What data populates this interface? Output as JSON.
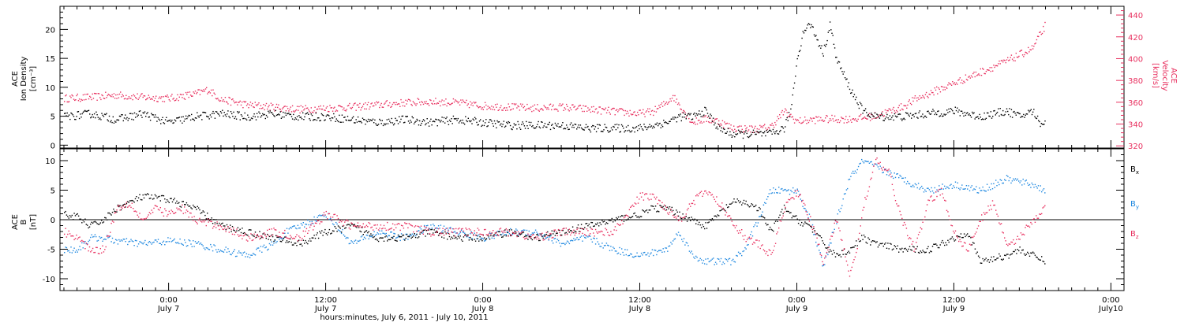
{
  "colors": {
    "black": "#000000",
    "pink": "#e8305f",
    "blue": "#1f88e0",
    "axis": "#000000"
  },
  "figure": {
    "xlabel": "hours:minutes, July  6, 2011 - July 10, 2011",
    "xticks": [
      {
        "time": "0:00",
        "date": "July 7",
        "hours": 24
      },
      {
        "time": "12:00",
        "date": "July 7",
        "hours": 36
      },
      {
        "time": "0:00",
        "date": "July 8",
        "hours": 48
      },
      {
        "time": "12:00",
        "date": "July 8",
        "hours": 60
      },
      {
        "time": "0:00",
        "date": "July 9",
        "hours": 72
      },
      {
        "time": "12:00",
        "date": "July 9",
        "hours": 84
      },
      {
        "time": "0:00",
        "date": "July10",
        "hours": 96
      }
    ]
  },
  "chart_data": [
    {
      "type": "scatter",
      "panel": "top",
      "ylabel": [
        "ACE",
        "Ion Density",
        "[cm⁻³]"
      ],
      "ylabel_right": [
        "ACE",
        "Velocity",
        "[km/s]"
      ],
      "x_units": "hours since July 6, 2011 00:00",
      "xlim": [
        15.7,
        97.0
      ],
      "ylim": [
        -0.5,
        24
      ],
      "yticks": [
        0,
        5,
        10,
        15,
        20
      ],
      "ylim_right": [
        318,
        448
      ],
      "yticks_right": [
        320,
        340,
        360,
        380,
        400,
        420,
        440
      ],
      "series": [
        {
          "axis": "left",
          "color": "black",
          "x": [
            16,
            18,
            20,
            22,
            24,
            26,
            28,
            30,
            32,
            34,
            36,
            38,
            40,
            42,
            44,
            46,
            48,
            50,
            52,
            54,
            56,
            58,
            60,
            61,
            62,
            62.5,
            63,
            64,
            65,
            66,
            67,
            68,
            69,
            70,
            71,
            71.5,
            72,
            72.5,
            73,
            74,
            74.5,
            75,
            76,
            77,
            78,
            80,
            82,
            84,
            86,
            88,
            89,
            90,
            90.5,
            91
          ],
          "y": [
            5,
            5.5,
            4.5,
            5.5,
            4,
            5,
            5.5,
            5,
            5.5,
            5,
            5,
            4.5,
            4,
            4.5,
            4,
            4.5,
            4,
            3.5,
            3.5,
            3.5,
            3,
            3,
            3,
            3.5,
            4,
            4.5,
            5,
            5,
            6,
            3,
            2,
            2,
            2,
            2,
            3,
            6,
            15,
            20,
            21,
            16,
            21,
            15,
            10,
            6,
            5,
            5,
            5.5,
            6,
            5,
            6,
            5,
            6,
            4,
            4
          ]
        },
        {
          "axis": "right",
          "color": "pink",
          "x": [
            16,
            18,
            20,
            22,
            24,
            26,
            27,
            28,
            30,
            32,
            34,
            36,
            38,
            40,
            42,
            44,
            46,
            48,
            50,
            52,
            54,
            56,
            58,
            60,
            61,
            62,
            62.5,
            63,
            64,
            65,
            66,
            67,
            68,
            69,
            70,
            71,
            72,
            73,
            74,
            75,
            76,
            77,
            78,
            80,
            81,
            82,
            84,
            86,
            88,
            90,
            91
          ],
          "y": [
            364,
            365,
            367,
            365,
            364,
            368,
            372,
            363,
            358,
            356,
            354,
            355,
            356,
            358,
            360,
            361,
            360,
            357,
            356,
            355,
            356,
            354,
            352,
            350,
            352,
            360,
            366,
            358,
            342,
            345,
            343,
            337,
            336,
            336,
            338,
            352,
            343,
            344,
            345,
            345,
            345,
            346,
            348,
            356,
            363,
            368,
            378,
            388,
            398,
            410,
            432
          ]
        },
        {
          "name": "",
          "axis": "left",
          "color": "pink",
          "x": [],
          "y": []
        }
      ]
    },
    {
      "type": "scatter",
      "panel": "bottom",
      "ylabel": [
        "ACE",
        "B",
        "[nT]"
      ],
      "x_units": "hours since July 6, 2011 00:00",
      "xlim": [
        15.7,
        97.0
      ],
      "ylim": [
        -12,
        12
      ],
      "yticks": [
        -10,
        -5,
        0,
        5,
        10
      ],
      "zero_line": true,
      "legend_placement": "right",
      "series": [
        {
          "name": "Bx",
          "label": "B",
          "sub": "x",
          "color": "black",
          "x": [
            16,
            17,
            18,
            19,
            20,
            22,
            24,
            26,
            28,
            30,
            32,
            34,
            36,
            38,
            40,
            42,
            44,
            46,
            48,
            50,
            52,
            54,
            56,
            58,
            60,
            61,
            62,
            63,
            64,
            65,
            66,
            67,
            68,
            69,
            70,
            71,
            72,
            73,
            74,
            75,
            76,
            77,
            78,
            80,
            82,
            84,
            85,
            86,
            88,
            89,
            90,
            91
          ],
          "y": [
            1,
            0.5,
            -1,
            0,
            2,
            4,
            3.5,
            2,
            -1,
            -2,
            -3,
            -4,
            -2,
            -1,
            -3,
            -3,
            -2,
            -3,
            -3,
            -2,
            -3,
            -2,
            -1,
            0,
            1,
            2,
            2,
            1,
            0,
            -1,
            1,
            3,
            3,
            2,
            -2,
            2,
            0,
            -1,
            -4,
            -6,
            -5,
            -3,
            -4,
            -5,
            -5,
            -3,
            -2,
            -7,
            -6,
            -5,
            -6,
            -7
          ]
        },
        {
          "name": "By",
          "label": "B",
          "sub": "y",
          "color": "blue",
          "x": [
            16,
            17,
            18,
            19,
            20,
            22,
            24,
            26,
            28,
            30,
            31,
            32,
            33,
            34,
            36,
            38,
            40,
            42,
            44,
            46,
            48,
            50,
            52,
            54,
            56,
            58,
            60,
            62,
            63,
            64,
            65,
            66,
            67,
            68,
            69,
            70,
            71,
            72,
            73,
            74,
            75,
            76,
            77,
            78,
            79,
            80,
            81,
            82,
            84,
            86,
            88,
            90,
            91
          ],
          "y": [
            -5,
            -5,
            -3,
            -3,
            -3.5,
            -4,
            -3.5,
            -4,
            -5,
            -6,
            -5,
            -4,
            -2,
            -1,
            1,
            -4,
            -2,
            -3,
            -1,
            -2,
            -3,
            -2,
            -2,
            -4,
            -3,
            -5,
            -6,
            -5,
            -2,
            -6,
            -7,
            -7,
            -7,
            -5,
            0,
            5,
            5,
            5,
            0,
            -8,
            0,
            7,
            10,
            9,
            8,
            7,
            6,
            5,
            6,
            5,
            7,
            6,
            5
          ]
        },
        {
          "name": "Bz",
          "label": "B",
          "sub": "z",
          "color": "pink",
          "x": [
            16,
            17,
            18,
            19,
            20,
            21,
            22,
            23,
            24,
            25,
            26,
            28,
            30,
            32,
            34,
            36,
            38,
            40,
            42,
            44,
            46,
            48,
            50,
            52,
            54,
            56,
            58,
            60,
            61,
            62,
            63,
            64,
            65,
            66,
            67,
            68,
            69,
            70,
            71,
            72,
            73,
            74,
            75,
            76,
            76.5,
            77,
            78,
            79,
            80,
            81,
            82,
            83,
            84,
            85,
            86,
            87,
            88,
            89,
            90,
            91
          ],
          "y": [
            -2,
            -3,
            -5,
            -5,
            2,
            3,
            0,
            2,
            1,
            2,
            0,
            -1,
            -3,
            -2,
            -3,
            1,
            -1,
            -1,
            -1,
            -2,
            -2,
            -2,
            -2,
            -3,
            -2,
            -2,
            -2,
            4,
            4,
            2,
            0,
            3,
            5,
            3,
            0,
            -3,
            -4,
            -6,
            2,
            5,
            0,
            -7,
            0,
            -9,
            -6,
            2,
            10,
            8,
            0,
            -5,
            3,
            5,
            -2,
            -5,
            0,
            3,
            -4,
            -3,
            0,
            2
          ]
        }
      ]
    }
  ]
}
